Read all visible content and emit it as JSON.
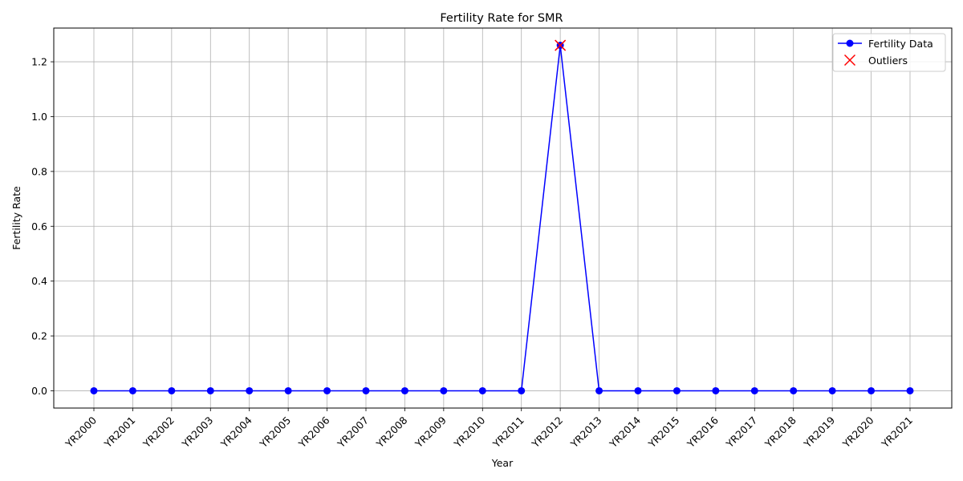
{
  "chart_data": {
    "type": "line",
    "title": "Fertility Rate for SMR",
    "xlabel": "Year",
    "ylabel": "Fertility Rate",
    "categories": [
      "YR2000",
      "YR2001",
      "YR2002",
      "YR2003",
      "YR2004",
      "YR2005",
      "YR2006",
      "YR2007",
      "YR2008",
      "YR2009",
      "YR2010",
      "YR2011",
      "YR2012",
      "YR2013",
      "YR2014",
      "YR2015",
      "YR2016",
      "YR2017",
      "YR2018",
      "YR2019",
      "YR2020",
      "YR2021"
    ],
    "series": [
      {
        "name": "Fertility Data",
        "color": "#0000ff",
        "marker": "circle",
        "values": [
          0,
          0,
          0,
          0,
          0,
          0,
          0,
          0,
          0,
          0,
          0,
          0,
          1.26,
          0,
          0,
          0,
          0,
          0,
          0,
          0,
          0,
          0
        ]
      }
    ],
    "outliers": {
      "name": "Outliers",
      "color": "#ff0000",
      "marker": "x",
      "points": [
        {
          "x": "YR2012",
          "y": 1.26
        }
      ]
    },
    "ylim": [
      -0.063,
      1.323
    ],
    "yticks": [
      0.0,
      0.2,
      0.4,
      0.6,
      0.8,
      1.0,
      1.2
    ],
    "ytick_labels": [
      "0.0",
      "0.2",
      "0.4",
      "0.6",
      "0.8",
      "1.0",
      "1.2"
    ],
    "grid": true,
    "legend": "top-right"
  }
}
